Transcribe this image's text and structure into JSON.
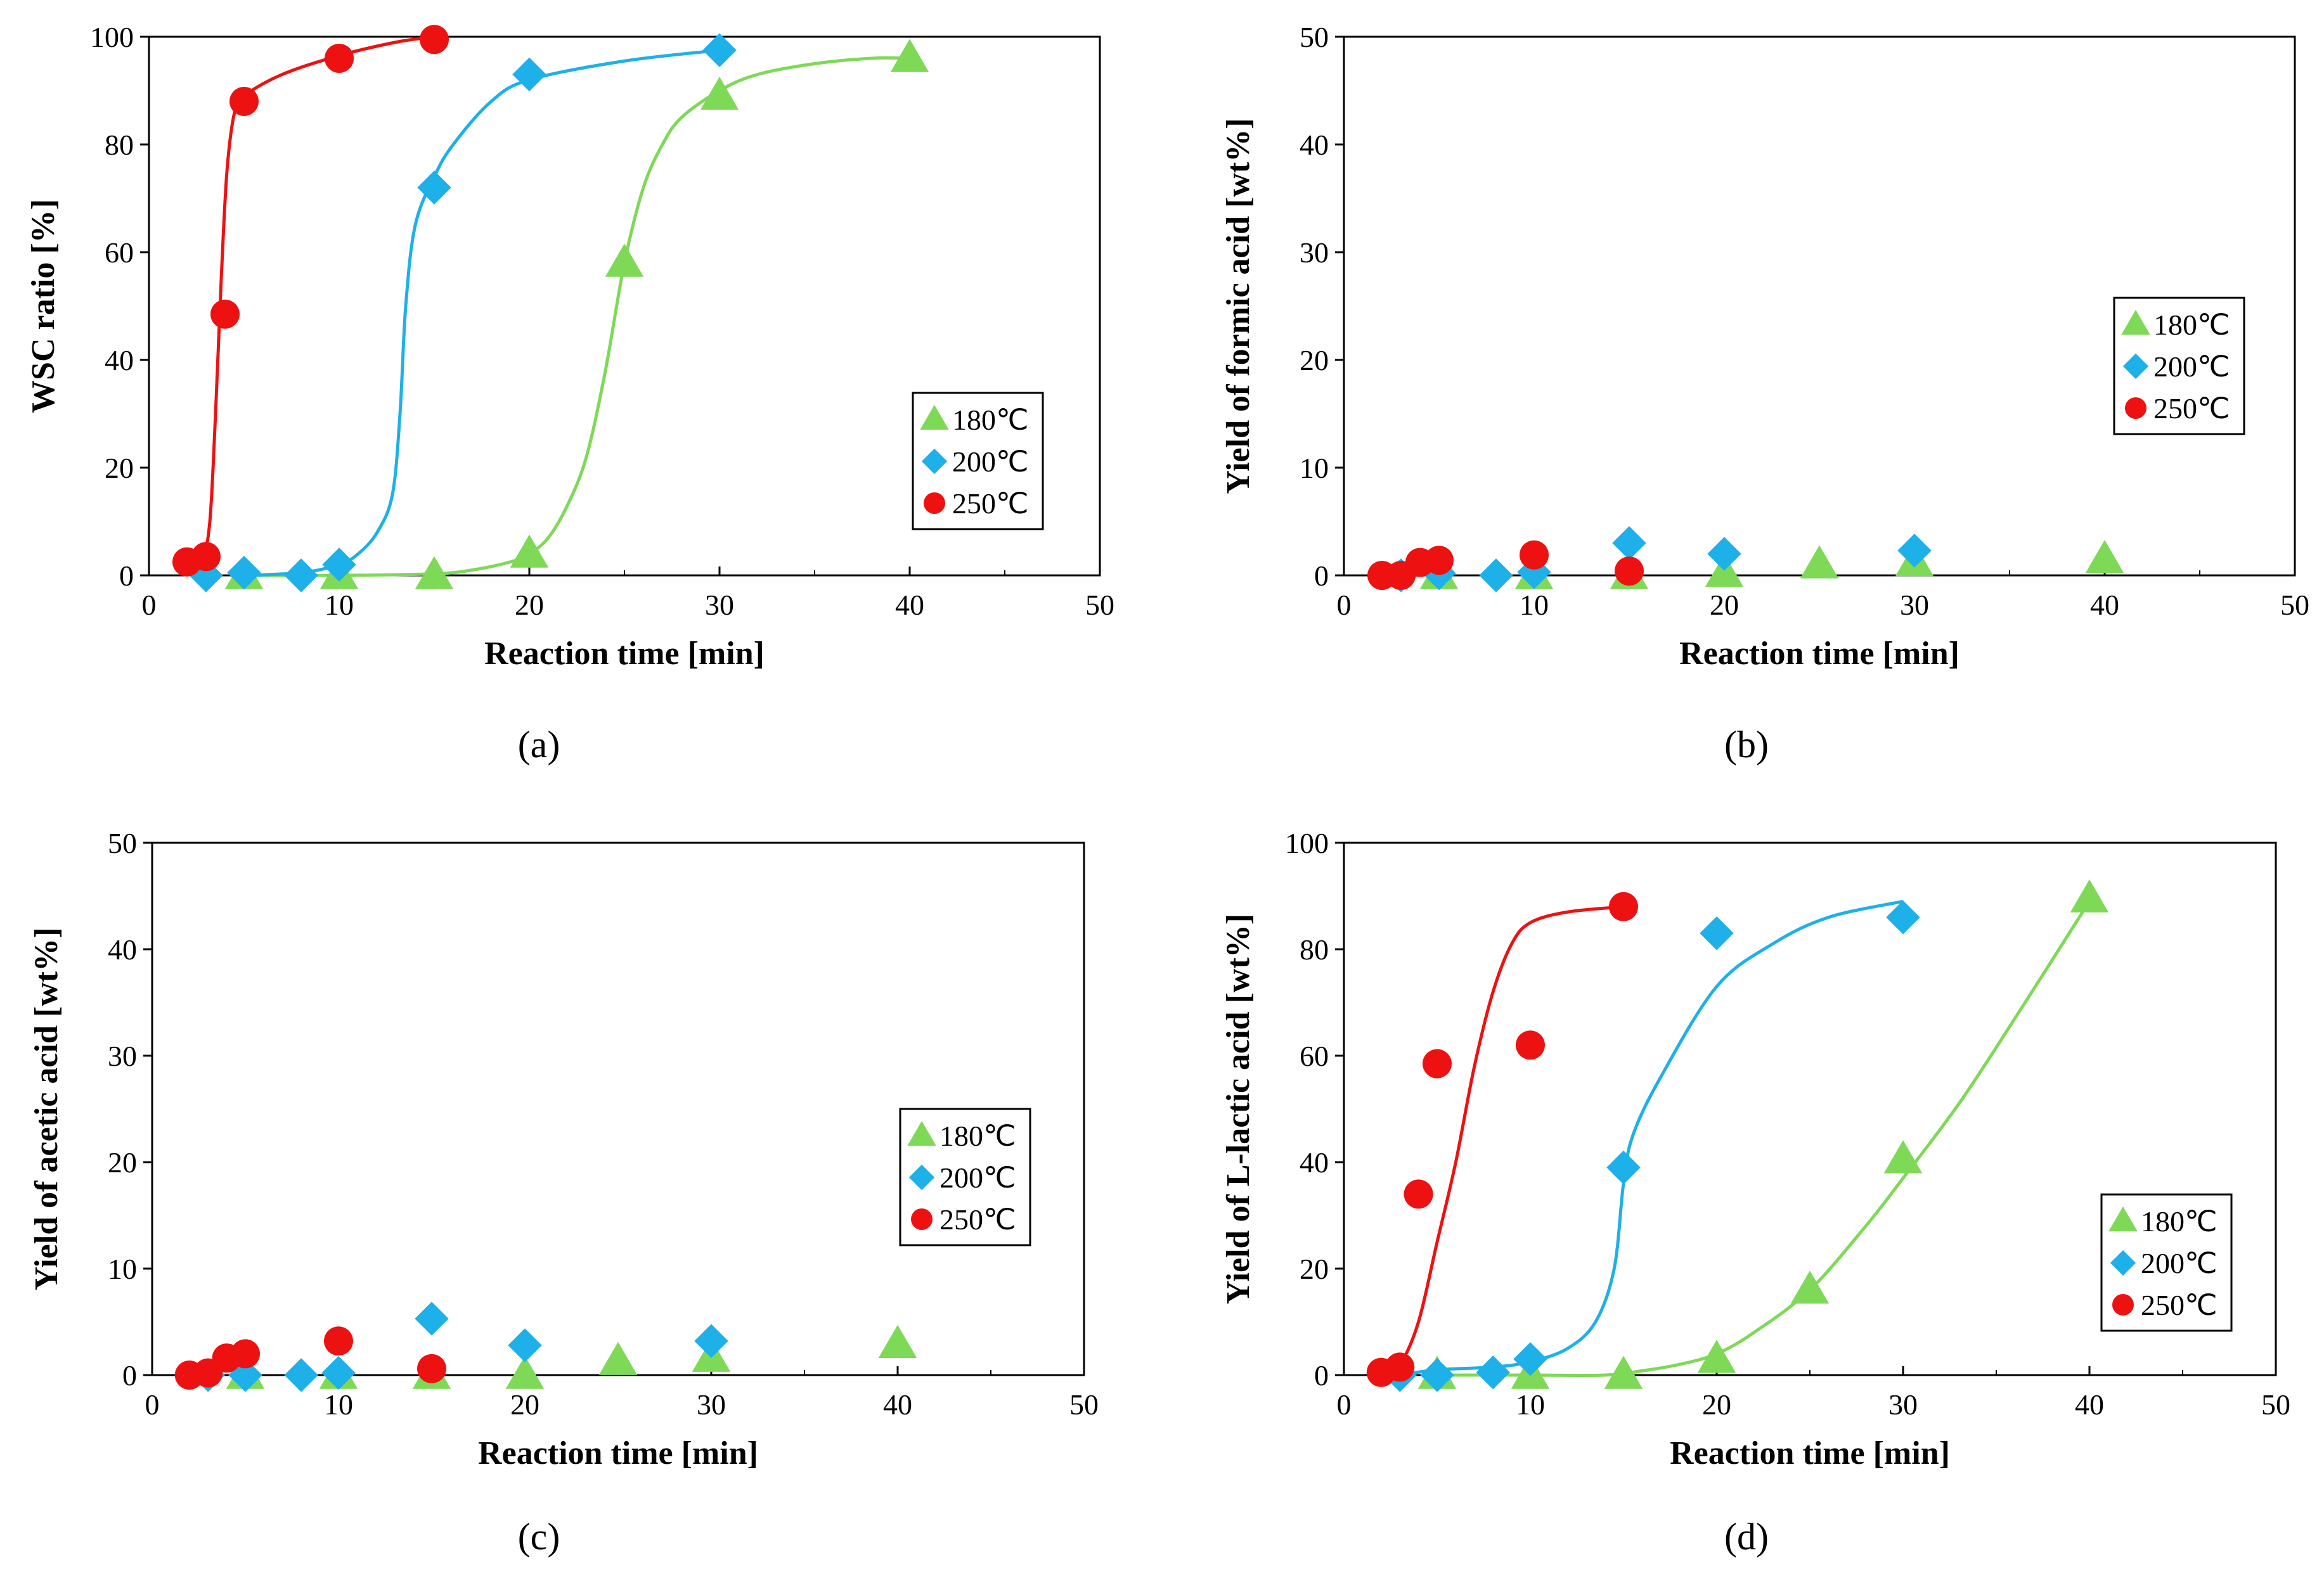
{
  "figure": {
    "panel_labels": [
      "(a)",
      "(b)",
      "(c)",
      "(d)"
    ]
  },
  "colors": {
    "180": "#7ED957",
    "200": "#1EB0E8",
    "250": "#EE1111",
    "axis": "#000000"
  },
  "chart_data": [
    {
      "type": "scatter",
      "panel": "(a)",
      "title": "",
      "xlabel": "Reaction time [min]",
      "ylabel": "WSC ratio [%]",
      "xlim": [
        0,
        50
      ],
      "ylim": [
        0,
        100
      ],
      "xticks": [
        "0",
        "10",
        "20",
        "30",
        "40",
        "50"
      ],
      "yticks": [
        "0",
        "20",
        "40",
        "60",
        "80",
        "100"
      ],
      "legend": [
        "180℃",
        "200℃",
        "250℃"
      ],
      "legend_position": "lower-right",
      "series": [
        {
          "name": "180℃",
          "marker": "triangle",
          "color_key": "180",
          "points": [
            [
              5,
              0
            ],
            [
              10,
              0
            ],
            [
              15,
              0
            ],
            [
              20,
              4
            ],
            [
              25,
              58
            ],
            [
              30,
              89
            ],
            [
              40,
              96
            ]
          ],
          "fit": [
            [
              5,
              0
            ],
            [
              10,
              0
            ],
            [
              15,
              0.3
            ],
            [
              17,
              1
            ],
            [
              19,
              2.5
            ],
            [
              20,
              4
            ],
            [
              21,
              7
            ],
            [
              22,
              13
            ],
            [
              23,
              22
            ],
            [
              24,
              38
            ],
            [
              25,
              58
            ],
            [
              26,
              72
            ],
            [
              27,
              80
            ],
            [
              28,
              85
            ],
            [
              30,
              90
            ],
            [
              32,
              93
            ],
            [
              35,
              95
            ],
            [
              38,
              96
            ],
            [
              40,
              96
            ]
          ]
        },
        {
          "name": "200℃",
          "marker": "diamond",
          "color_key": "200",
          "points": [
            [
              3,
              0
            ],
            [
              5,
              0.5
            ],
            [
              8,
              0
            ],
            [
              10,
              2
            ],
            [
              15,
              72
            ],
            [
              20,
              93
            ],
            [
              30,
              97.5
            ]
          ],
          "fit": [
            [
              5,
              0
            ],
            [
              8,
              0.5
            ],
            [
              10,
              2
            ],
            [
              11,
              4
            ],
            [
              12,
              8
            ],
            [
              12.8,
              15
            ],
            [
              13.2,
              30
            ],
            [
              13.5,
              50
            ],
            [
              14,
              65
            ],
            [
              15,
              74
            ],
            [
              16,
              80
            ],
            [
              18,
              88
            ],
            [
              20,
              92
            ],
            [
              25,
              95.5
            ],
            [
              30,
              97.5
            ]
          ]
        },
        {
          "name": "250℃",
          "marker": "circle",
          "color_key": "250",
          "points": [
            [
              2,
              2.5
            ],
            [
              3,
              3.5
            ],
            [
              4,
              48.5
            ],
            [
              5,
              88
            ],
            [
              10,
              96
            ],
            [
              15,
              99.5
            ]
          ],
          "fit": [
            [
              2,
              2.5
            ],
            [
              2.8,
              3.5
            ],
            [
              3.2,
              10
            ],
            [
              3.5,
              30
            ],
            [
              3.8,
              55
            ],
            [
              4.1,
              75
            ],
            [
              4.5,
              86
            ],
            [
              5,
              89
            ],
            [
              7,
              93
            ],
            [
              10,
              96.5
            ],
            [
              13,
              99
            ],
            [
              15,
              100
            ]
          ]
        }
      ]
    },
    {
      "type": "scatter",
      "panel": "(b)",
      "title": "",
      "xlabel": "Reaction time [min]",
      "ylabel": "Yield of formic acid [wt%]",
      "xlim": [
        0,
        50
      ],
      "ylim": [
        0,
        50
      ],
      "xticks": [
        "0",
        "10",
        "20",
        "30",
        "40",
        "50"
      ],
      "yticks": [
        "0",
        "10",
        "20",
        "30",
        "40",
        "50"
      ],
      "legend": [
        "180℃",
        "200℃",
        "250℃"
      ],
      "legend_position": "right",
      "series": [
        {
          "name": "180℃",
          "marker": "triangle",
          "color_key": "180",
          "points": [
            [
              5,
              0
            ],
            [
              10,
              0
            ],
            [
              15,
              0
            ],
            [
              20,
              0.2
            ],
            [
              25,
              1
            ],
            [
              30,
              1.2
            ],
            [
              40,
              1.5
            ]
          ]
        },
        {
          "name": "200℃",
          "marker": "diamond",
          "color_key": "200",
          "points": [
            [
              3,
              0
            ],
            [
              5,
              0.2
            ],
            [
              8,
              0
            ],
            [
              10,
              0.3
            ],
            [
              15,
              3
            ],
            [
              20,
              2
            ],
            [
              30,
              2.3
            ]
          ]
        },
        {
          "name": "250℃",
          "marker": "circle",
          "color_key": "250",
          "points": [
            [
              2,
              0
            ],
            [
              3,
              0
            ],
            [
              4,
              1.2
            ],
            [
              5,
              1.4
            ],
            [
              10,
              1.9
            ],
            [
              15,
              0.4
            ]
          ]
        }
      ]
    },
    {
      "type": "scatter",
      "panel": "(c)",
      "title": "",
      "xlabel": "Reaction time [min]",
      "ylabel": "Yield of acetic acid [wt%]",
      "xlim": [
        0,
        50
      ],
      "ylim": [
        0,
        50
      ],
      "xticks": [
        "0",
        "10",
        "20",
        "30",
        "40",
        "50"
      ],
      "yticks": [
        "0",
        "10",
        "20",
        "30",
        "40",
        "50"
      ],
      "legend": [
        "180℃",
        "200℃",
        "250℃"
      ],
      "legend_position": "right",
      "series": [
        {
          "name": "180℃",
          "marker": "triangle",
          "color_key": "180",
          "points": [
            [
              5,
              0
            ],
            [
              10,
              0
            ],
            [
              15,
              0
            ],
            [
              20,
              0
            ],
            [
              25,
              1.3
            ],
            [
              30,
              1.6
            ],
            [
              40,
              2.9
            ]
          ]
        },
        {
          "name": "200℃",
          "marker": "diamond",
          "color_key": "200",
          "points": [
            [
              3,
              0
            ],
            [
              5,
              0
            ],
            [
              8,
              0
            ],
            [
              10,
              0.2
            ],
            [
              15,
              5.3
            ],
            [
              20,
              2.8
            ],
            [
              30,
              3.2
            ]
          ]
        },
        {
          "name": "250℃",
          "marker": "circle",
          "color_key": "250",
          "points": [
            [
              2,
              0
            ],
            [
              3,
              0.2
            ],
            [
              4,
              1.6
            ],
            [
              5,
              2
            ],
            [
              10,
              3.2
            ],
            [
              15,
              0.6
            ]
          ]
        }
      ]
    },
    {
      "type": "scatter",
      "panel": "(d)",
      "title": "",
      "xlabel": "Reaction time [min]",
      "ylabel": "Yield of L-lactic acid [wt%]",
      "xlim": [
        0,
        50
      ],
      "ylim": [
        0,
        100
      ],
      "xticks": [
        "0",
        "10",
        "20",
        "30",
        "40",
        "50"
      ],
      "yticks": [
        "0",
        "20",
        "40",
        "60",
        "80",
        "100"
      ],
      "legend": [
        "180℃",
        "200℃",
        "250℃"
      ],
      "legend_position": "lower-right",
      "series": [
        {
          "name": "180℃",
          "marker": "triangle",
          "color_key": "180",
          "points": [
            [
              5,
              0
            ],
            [
              10,
              0
            ],
            [
              15,
              0
            ],
            [
              20,
              3
            ],
            [
              25,
              16
            ],
            [
              30,
              40.5
            ],
            [
              40,
              89.5
            ]
          ],
          "fit": [
            [
              5,
              0
            ],
            [
              10,
              0
            ],
            [
              14,
              0
            ],
            [
              16,
              0.8
            ],
            [
              18,
              2
            ],
            [
              20,
              4
            ],
            [
              22,
              8
            ],
            [
              25,
              16
            ],
            [
              28,
              28
            ],
            [
              30,
              37
            ],
            [
              33,
              51
            ],
            [
              36,
              67
            ],
            [
              40,
              89
            ]
          ]
        },
        {
          "name": "200℃",
          "marker": "diamond",
          "color_key": "200",
          "points": [
            [
              3,
              0
            ],
            [
              5,
              0
            ],
            [
              8,
              0.5
            ],
            [
              10,
              3
            ],
            [
              15,
              39
            ],
            [
              20,
              83
            ],
            [
              30,
              86
            ]
          ],
          "fit": [
            [
              3,
              0
            ],
            [
              5,
              1
            ],
            [
              8,
              1.5
            ],
            [
              10,
              2.5
            ],
            [
              12,
              5
            ],
            [
              13.5,
              10
            ],
            [
              14.5,
              20
            ],
            [
              15,
              36
            ],
            [
              15.5,
              45
            ],
            [
              17,
              56
            ],
            [
              20,
              73
            ],
            [
              23,
              81
            ],
            [
              26,
              86
            ],
            [
              30,
              89
            ]
          ]
        },
        {
          "name": "250℃",
          "marker": "circle",
          "color_key": "250",
          "points": [
            [
              2,
              0.5
            ],
            [
              3,
              1.5
            ],
            [
              4,
              34
            ],
            [
              5,
              58.5
            ],
            [
              10,
              62
            ],
            [
              15,
              88
            ]
          ],
          "fit": [
            [
              2,
              0
            ],
            [
              3,
              2
            ],
            [
              4,
              10
            ],
            [
              5,
              25
            ],
            [
              6,
              40
            ],
            [
              7,
              58
            ],
            [
              8,
              72
            ],
            [
              9,
              81
            ],
            [
              10,
              85
            ],
            [
              12,
              87
            ],
            [
              15,
              88
            ]
          ]
        }
      ]
    }
  ]
}
